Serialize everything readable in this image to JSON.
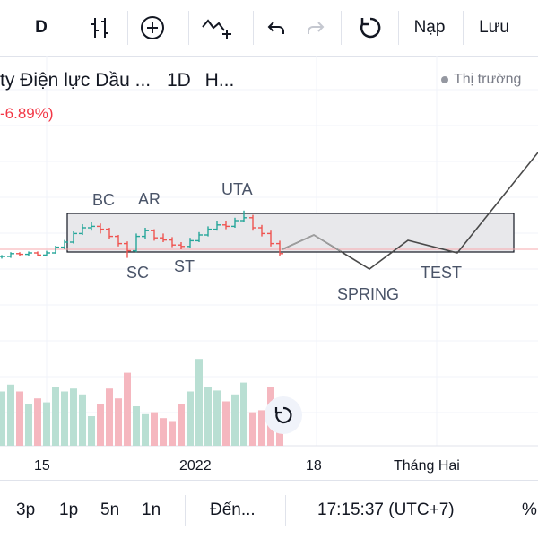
{
  "toolbar": {
    "interval_label": "D",
    "load_label": "Nạp",
    "save_label": "Lưu",
    "icons": [
      "bar-style-icon",
      "add-indicator-icon",
      "indicators-icon",
      "undo-icon",
      "redo-icon",
      "refresh-icon"
    ]
  },
  "legend": {
    "title": "ty Điện lực Dầu ...",
    "interval": "1D",
    "exchange": "H...",
    "change": "-6.89%)",
    "market_status": "Thị trường"
  },
  "annotations": {
    "bc": "BC",
    "ar": "AR",
    "uta": "UTA",
    "sc": "SC",
    "st": "ST",
    "spring": "SPRING",
    "test": "TEST"
  },
  "x_axis": {
    "labels": [
      "15",
      "2022",
      "18",
      "Tháng Hai"
    ]
  },
  "bottom_bar": {
    "range_3p": "3p",
    "range_1p": "1p",
    "range_5n": "5n",
    "range_1n": "1n",
    "goto": "Đến...",
    "clock": "17:15:37 (UTC+7)",
    "percent": "%"
  },
  "colors": {
    "up": "#26a69a",
    "down": "#ef5350",
    "vol_up": "#b9dfd3",
    "vol_down": "#f5b7bf",
    "box_fill": "#e8e8eb",
    "path": "#4a4a4a",
    "forecast": "#9e9e9e",
    "price_line": "#f7a9ad"
  },
  "chart_data": {
    "type": "bar",
    "title": "",
    "candles": [
      {
        "o": 0.2,
        "c": 0.2,
        "h": 0.22,
        "l": 0.17
      },
      {
        "o": 0.2,
        "c": 0.24,
        "h": 0.26,
        "l": 0.18
      },
      {
        "o": 0.24,
        "c": 0.23,
        "h": 0.26,
        "l": 0.21
      },
      {
        "o": 0.23,
        "c": 0.25,
        "h": 0.27,
        "l": 0.21
      },
      {
        "o": 0.25,
        "c": 0.22,
        "h": 0.27,
        "l": 0.2
      },
      {
        "o": 0.22,
        "c": 0.25,
        "h": 0.28,
        "l": 0.2
      },
      {
        "o": 0.25,
        "c": 0.33,
        "h": 0.35,
        "l": 0.24
      },
      {
        "o": 0.33,
        "c": 0.4,
        "h": 0.43,
        "l": 0.3
      },
      {
        "o": 0.4,
        "c": 0.52,
        "h": 0.55,
        "l": 0.38
      },
      {
        "o": 0.52,
        "c": 0.6,
        "h": 0.65,
        "l": 0.5
      },
      {
        "o": 0.6,
        "c": 0.62,
        "h": 0.68,
        "l": 0.56
      },
      {
        "o": 0.62,
        "c": 0.58,
        "h": 0.66,
        "l": 0.52
      },
      {
        "o": 0.58,
        "c": 0.48,
        "h": 0.6,
        "l": 0.44
      },
      {
        "o": 0.48,
        "c": 0.38,
        "h": 0.5,
        "l": 0.34
      },
      {
        "o": 0.38,
        "c": 0.28,
        "h": 0.41,
        "l": 0.18
      },
      {
        "o": 0.28,
        "c": 0.48,
        "h": 0.52,
        "l": 0.26
      },
      {
        "o": 0.48,
        "c": 0.56,
        "h": 0.6,
        "l": 0.45
      },
      {
        "o": 0.56,
        "c": 0.46,
        "h": 0.58,
        "l": 0.42
      },
      {
        "o": 0.46,
        "c": 0.43,
        "h": 0.52,
        "l": 0.4
      },
      {
        "o": 0.43,
        "c": 0.36,
        "h": 0.47,
        "l": 0.33
      },
      {
        "o": 0.36,
        "c": 0.34,
        "h": 0.4,
        "l": 0.3
      },
      {
        "o": 0.34,
        "c": 0.42,
        "h": 0.46,
        "l": 0.32
      },
      {
        "o": 0.42,
        "c": 0.5,
        "h": 0.54,
        "l": 0.4
      },
      {
        "o": 0.5,
        "c": 0.58,
        "h": 0.62,
        "l": 0.48
      },
      {
        "o": 0.58,
        "c": 0.64,
        "h": 0.7,
        "l": 0.56
      },
      {
        "o": 0.64,
        "c": 0.62,
        "h": 0.7,
        "l": 0.58
      },
      {
        "o": 0.62,
        "c": 0.7,
        "h": 0.74,
        "l": 0.6
      },
      {
        "o": 0.7,
        "c": 0.74,
        "h": 0.84,
        "l": 0.68
      },
      {
        "o": 0.74,
        "c": 0.6,
        "h": 0.78,
        "l": 0.56
      },
      {
        "o": 0.6,
        "c": 0.52,
        "h": 0.64,
        "l": 0.48
      },
      {
        "o": 0.52,
        "c": 0.38,
        "h": 0.56,
        "l": 0.34
      },
      {
        "o": 0.38,
        "c": 0.24,
        "h": 0.42,
        "l": 0.2
      }
    ],
    "volumes": [
      0.55,
      0.62,
      0.55,
      0.42,
      0.48,
      0.44,
      0.6,
      0.55,
      0.58,
      0.52,
      0.3,
      0.42,
      0.58,
      0.48,
      0.74,
      0.4,
      0.32,
      0.34,
      0.28,
      0.25,
      0.42,
      0.55,
      0.88,
      0.6,
      0.56,
      0.45,
      0.52,
      0.64,
      0.34,
      0.36,
      0.6,
      0.4
    ],
    "forecast_path": [
      [
        14,
        0.3
      ],
      [
        36,
        0.36
      ],
      [
        76,
        0.05
      ],
      [
        92,
        0.34
      ],
      [
        110,
        0.22
      ],
      [
        150,
        0.95
      ]
    ]
  }
}
